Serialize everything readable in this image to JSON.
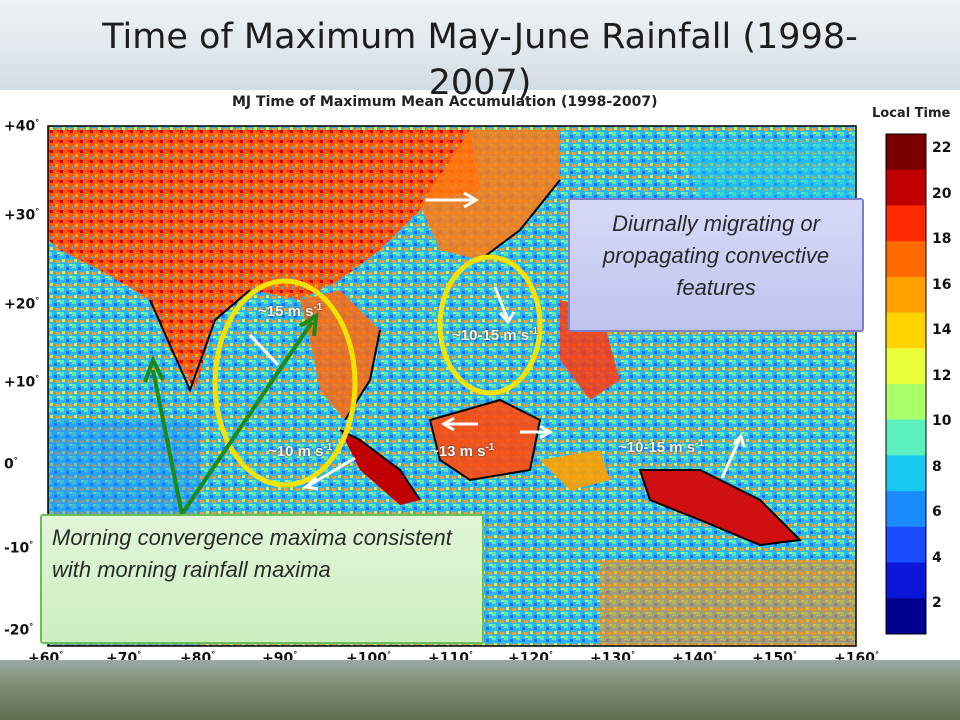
{
  "slide": {
    "title": "Time of Maximum May-June Rainfall (1998-2007)"
  },
  "map": {
    "title": "MJ Time of Maximum Mean Accumulation (1998-2007)",
    "colorbar_title": "Local Time",
    "colorbar_ticks": [
      "22",
      "20",
      "18",
      "16",
      "14",
      "12",
      "10",
      "8",
      "6",
      "4",
      "2"
    ],
    "lat_ticks": [
      {
        "value": "+40",
        "sup": "°"
      },
      {
        "value": "+30",
        "sup": "°"
      },
      {
        "value": "+20",
        "sup": "°"
      },
      {
        "value": "+10",
        "sup": "°"
      },
      {
        "value": "0",
        "sup": "°"
      },
      {
        "value": "-10",
        "sup": "°"
      },
      {
        "value": "-20",
        "sup": "°"
      }
    ],
    "lon_ticks": [
      {
        "value": "+60",
        "sup": "°"
      },
      {
        "value": "+70",
        "sup": "°"
      },
      {
        "value": "+80",
        "sup": "°"
      },
      {
        "value": "+90",
        "sup": "°"
      },
      {
        "value": "+100",
        "sup": "°"
      },
      {
        "value": "+110",
        "sup": "°"
      },
      {
        "value": "+120",
        "sup": "°"
      },
      {
        "value": "+130",
        "sup": "°"
      },
      {
        "value": "+140",
        "sup": "°"
      },
      {
        "value": "+150",
        "sup": "°"
      },
      {
        "value": "+160",
        "sup": "°"
      }
    ],
    "colors": {
      "colorbar": [
        "#7a0000",
        "#c00000",
        "#ff2a00",
        "#ff6a00",
        "#ffa000",
        "#ffd400",
        "#e8ff3a",
        "#a8ff6a",
        "#5cf0c0",
        "#18c8f0",
        "#1a8cff",
        "#1a4cff",
        "#0a16d8",
        "#000090"
      ],
      "ellipse": "#f2e400",
      "green_arrow": "#1a8a1a",
      "wind_arrow": "#ffffff"
    }
  },
  "annotations": {
    "speed_labels": [
      {
        "text": "~15 m s",
        "sup": "-1"
      },
      {
        "text": "~10-15 m s",
        "sup": "-1"
      },
      {
        "text": "~10 m s",
        "sup": "-1"
      },
      {
        "text": "~13 m s",
        "sup": "-1"
      },
      {
        "text": "~10-15 m s",
        "sup": "-1"
      }
    ],
    "callout_blue": "Diurnally migrating or propagating convective features",
    "callout_green": "Morning convergence maxima consistent with morning rainfall maxima"
  }
}
